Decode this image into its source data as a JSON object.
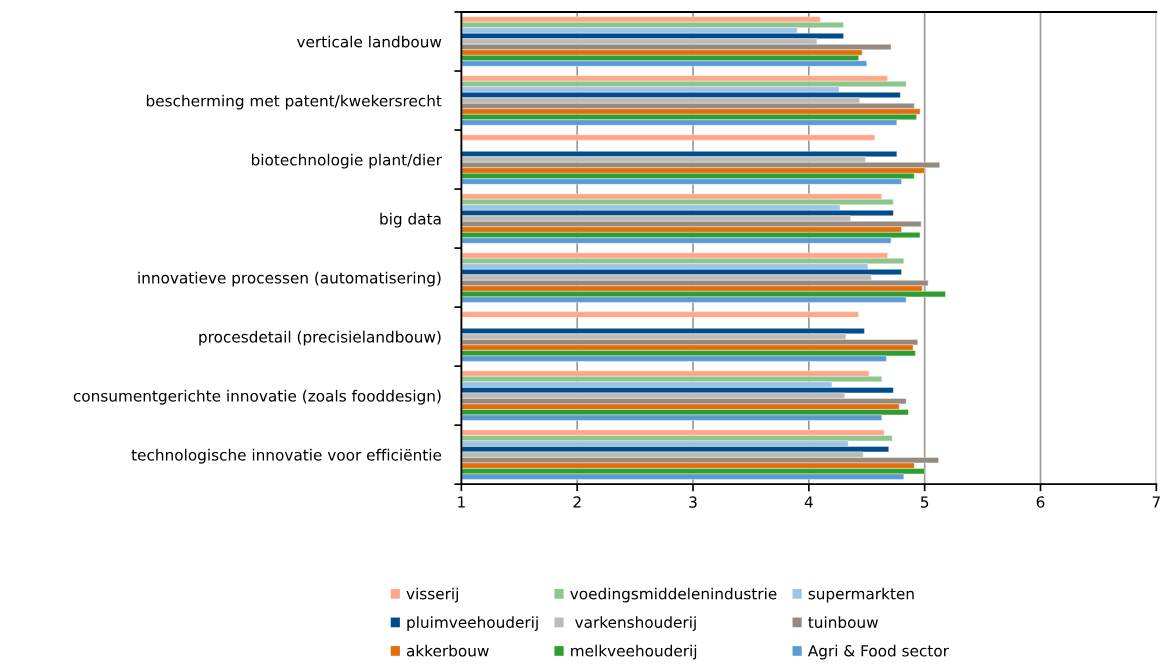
{
  "chart_data": {
    "type": "bar",
    "orientation": "horizontal",
    "grid": "x",
    "legend": "bottom",
    "categories": [
      "verticale landbouw",
      "bescherming met patent/kwekersrecht",
      "biotechnologie plant/dier",
      "big data",
      "innovatieve processen (automatisering)",
      "procesdetail (precisielandbouw)",
      "consumentgerichte innovatie (zoals fooddesign)",
      "technologische innovatie voor efficiëntie"
    ],
    "xlim": [
      1,
      7
    ],
    "xticks": [
      1,
      2,
      3,
      4,
      5,
      6,
      7
    ],
    "series": [
      {
        "name": "visserij",
        "color": "#ffa588",
        "values": [
          4.1,
          4.68,
          4.57,
          4.63,
          4.68,
          4.43,
          4.52,
          4.65
        ]
      },
      {
        "name": "voedingsmiddelenindustrie",
        "color": "#8cc68a",
        "values": [
          4.3,
          4.84,
          null,
          4.73,
          4.82,
          null,
          4.63,
          4.72
        ]
      },
      {
        "name": "supermarkten",
        "color": "#9dc3e6",
        "values": [
          3.9,
          4.26,
          null,
          4.27,
          4.51,
          null,
          4.2,
          4.34
        ]
      },
      {
        "name": "pluimveehouderij",
        "color": "#004c8c",
        "values": [
          4.3,
          4.79,
          4.76,
          4.73,
          4.8,
          4.48,
          4.73,
          4.69
        ]
      },
      {
        "name": " varkenshouderij",
        "color": "#bfbbb4",
        "values": [
          4.07,
          4.44,
          4.49,
          4.36,
          4.54,
          4.32,
          4.31,
          4.47
        ]
      },
      {
        "name": "tuinbouw",
        "color": "#948a80",
        "values": [
          4.71,
          4.91,
          5.13,
          4.97,
          5.03,
          4.94,
          4.84,
          5.12
        ]
      },
      {
        "name": "akkerbouw",
        "color": "#e46c0a",
        "values": [
          4.46,
          4.96,
          5.0,
          4.8,
          4.98,
          4.9,
          4.78,
          4.91
        ]
      },
      {
        "name": "melkveehouderij",
        "color": "#2e9e2e",
        "values": [
          4.43,
          4.93,
          4.91,
          4.96,
          5.18,
          4.92,
          4.86,
          5.0
        ]
      },
      {
        "name": "Agri & Food sector",
        "color": "#5b9bd5",
        "values": [
          4.5,
          4.76,
          4.8,
          4.71,
          4.84,
          4.67,
          4.63,
          4.82
        ]
      }
    ]
  }
}
